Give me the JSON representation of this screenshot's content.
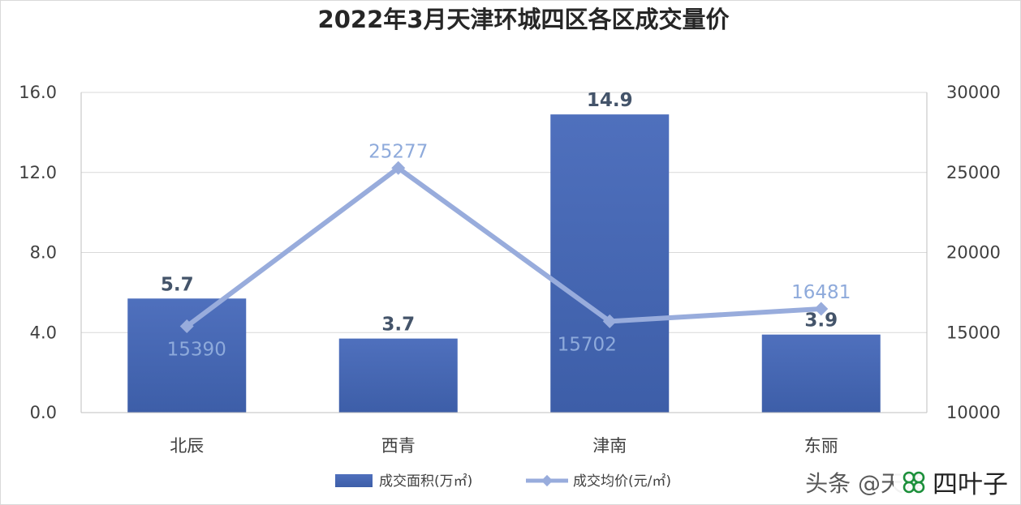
{
  "chart_data": {
    "type": "bar",
    "title": "2022年3月天津环城四区各区成交量价",
    "categories": [
      "北辰",
      "西青",
      "津南",
      "东丽"
    ],
    "series": [
      {
        "name": "成交面积(万㎡)",
        "type": "bar",
        "axis": "left",
        "values": [
          5.7,
          3.7,
          14.9,
          3.9
        ],
        "labels": [
          "5.7",
          "3.7",
          "14.9",
          "3.9"
        ],
        "color": "#4a6bb8"
      },
      {
        "name": "成交均价(元/㎡)",
        "type": "line",
        "axis": "right",
        "values": [
          15390,
          25277,
          15702,
          16481
        ],
        "labels": [
          "15390",
          "25277",
          "15702",
          "16481"
        ],
        "color": "#98acdc"
      }
    ],
    "y_left": {
      "min": 0,
      "max": 16,
      "ticks": [
        "0.0",
        "4.0",
        "8.0",
        "12.0",
        "16.0"
      ]
    },
    "y_right": {
      "min": 10000,
      "max": 30000,
      "ticks": [
        "10000",
        "15000",
        "20000",
        "25000",
        "30000"
      ]
    },
    "grid": true,
    "legend": "bottom"
  },
  "watermark": {
    "text": "头条 @天津",
    "badge": "四叶子",
    "icon": "clover-icon"
  }
}
